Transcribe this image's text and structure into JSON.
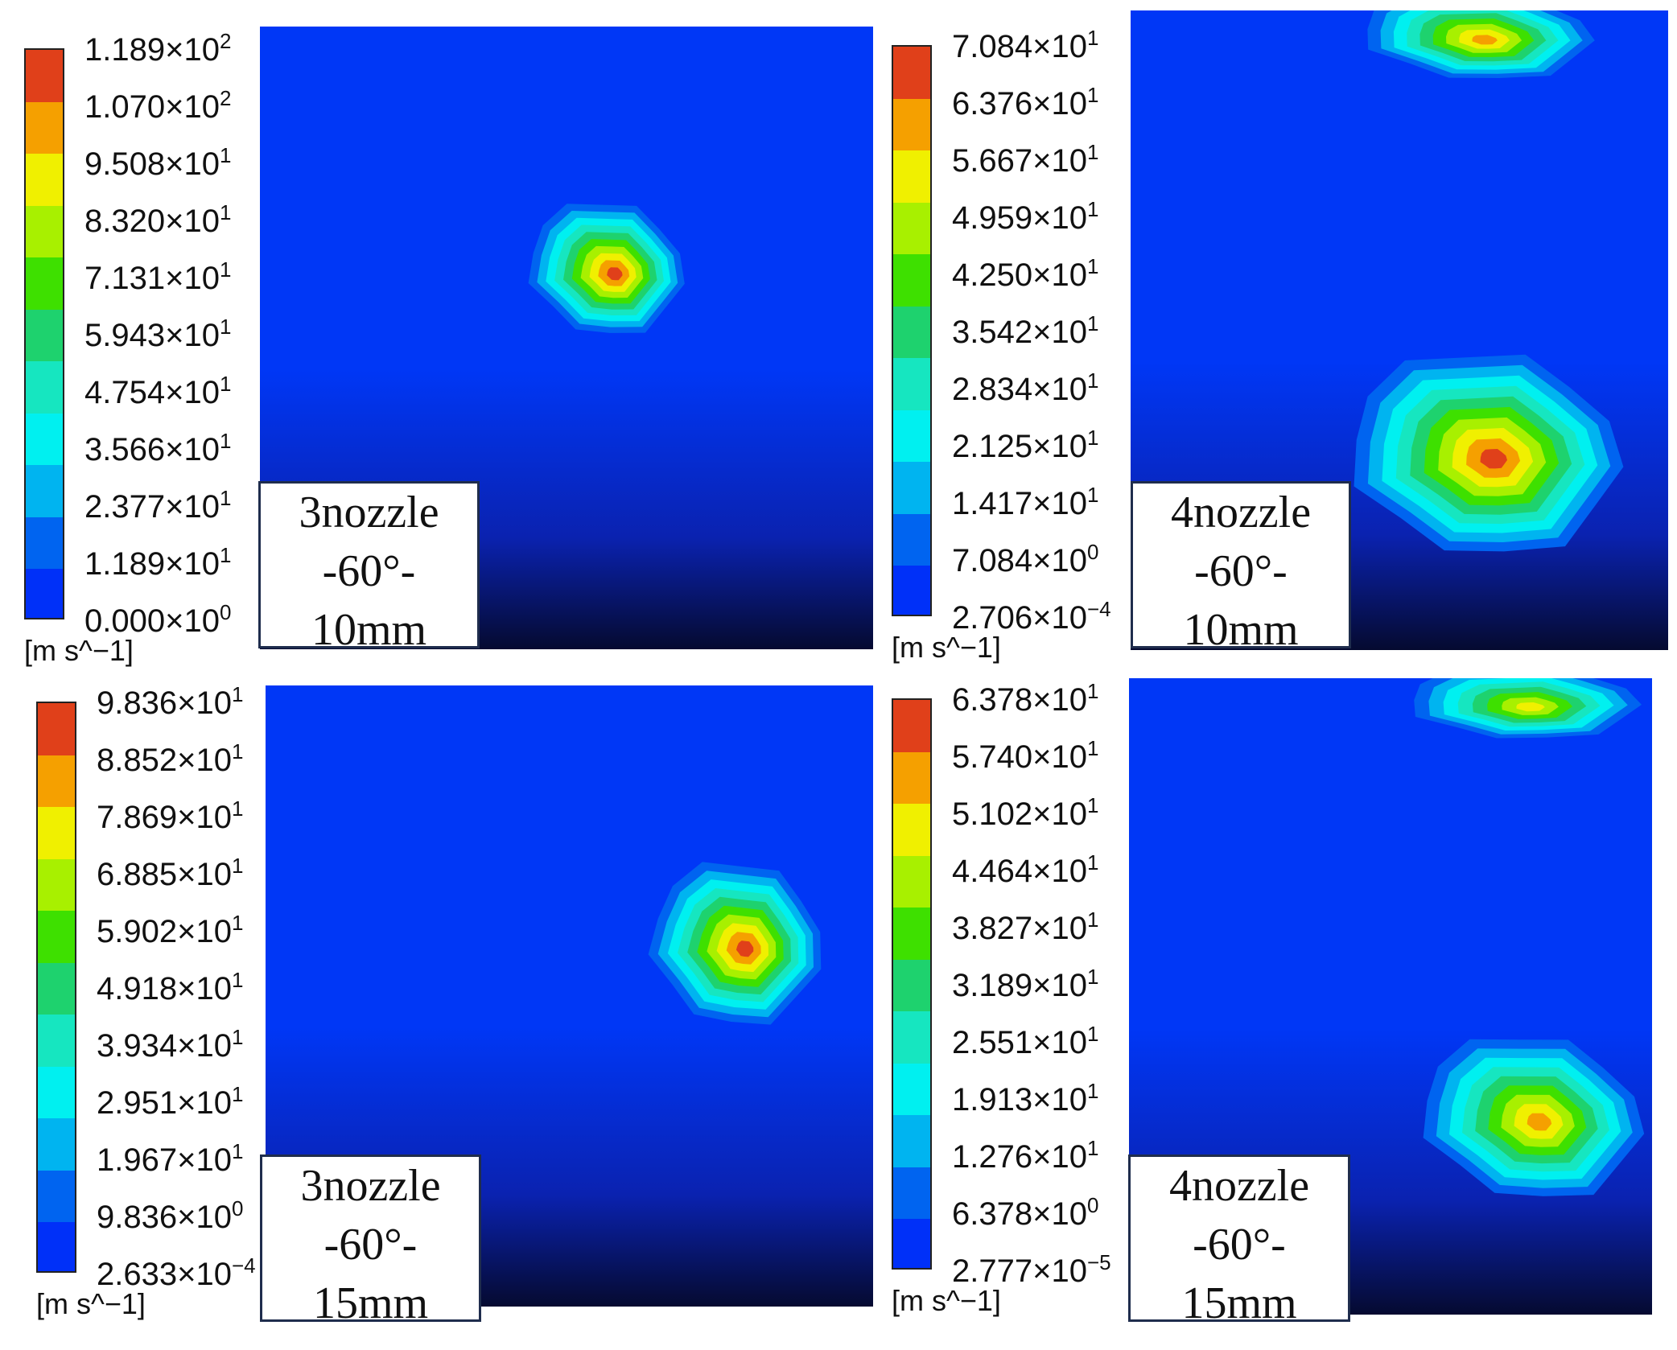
{
  "panels": [
    {
      "id": "p1",
      "legend_ticks": [
        [
          "1.189",
          "2"
        ],
        [
          "1.070",
          "2"
        ],
        [
          "9.508",
          "1"
        ],
        [
          "8.320",
          "1"
        ],
        [
          "7.131",
          "1"
        ],
        [
          "5.943",
          "1"
        ],
        [
          "4.754",
          "1"
        ],
        [
          "3.566",
          "1"
        ],
        [
          "2.377",
          "1"
        ],
        [
          "1.189",
          "1"
        ],
        [
          "0.000",
          "0"
        ]
      ],
      "unit": "[m s^−1]",
      "label": [
        "3nozzle",
        "-60°-",
        "10mm"
      ]
    },
    {
      "id": "p2",
      "legend_ticks": [
        [
          "7.084",
          "1"
        ],
        [
          "6.376",
          "1"
        ],
        [
          "5.667",
          "1"
        ],
        [
          "4.959",
          "1"
        ],
        [
          "4.250",
          "1"
        ],
        [
          "3.542",
          "1"
        ],
        [
          "2.834",
          "1"
        ],
        [
          "2.125",
          "1"
        ],
        [
          "1.417",
          "1"
        ],
        [
          "7.084",
          "0"
        ],
        [
          "2.706",
          "−4"
        ]
      ],
      "unit": "[m s^−1]",
      "label": [
        "4nozzle",
        "-60°-",
        "10mm"
      ]
    },
    {
      "id": "p3",
      "legend_ticks": [
        [
          "9.836",
          "1"
        ],
        [
          "8.852",
          "1"
        ],
        [
          "7.869",
          "1"
        ],
        [
          "6.885",
          "1"
        ],
        [
          "5.902",
          "1"
        ],
        [
          "4.918",
          "1"
        ],
        [
          "3.934",
          "1"
        ],
        [
          "2.951",
          "1"
        ],
        [
          "1.967",
          "1"
        ],
        [
          "9.836",
          "0"
        ],
        [
          "2.633",
          "−4"
        ]
      ],
      "unit": "[m s^−1]",
      "label": [
        "3nozzle",
        "-60°-",
        "15mm"
      ]
    },
    {
      "id": "p4",
      "legend_ticks": [
        [
          "6.378",
          "1"
        ],
        [
          "5.740",
          "1"
        ],
        [
          "5.102",
          "1"
        ],
        [
          "4.464",
          "1"
        ],
        [
          "3.827",
          "1"
        ],
        [
          "3.189",
          "1"
        ],
        [
          "2.551",
          "1"
        ],
        [
          "1.913",
          "1"
        ],
        [
          "1.276",
          "1"
        ],
        [
          "6.378",
          "0"
        ],
        [
          "2.777",
          "−5"
        ]
      ],
      "unit": "[m s^−1]",
      "label": [
        "4nozzle",
        "-60°-",
        "15mm"
      ]
    }
  ],
  "colormap": [
    "#e0401a",
    "#f5a000",
    "#f0f000",
    "#a8f000",
    "#3ee000",
    "#1ed26e",
    "#16e6c0",
    "#00f0f0",
    "#00b4f0",
    "#0064f0",
    "#0030f8"
  ],
  "background_color": "#0037f6"
}
